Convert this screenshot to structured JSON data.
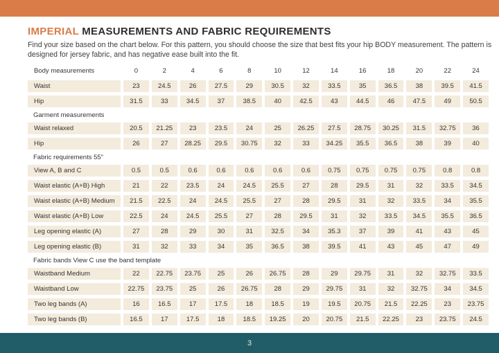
{
  "page": {
    "title_highlight": "IMPERIAL",
    "title_rest": " MEASUREMENTS AND FABRIC REQUIREMENTS",
    "subtitle": "Find your size based on the chart below. For this pattern, you should choose the size that best fits your hip BODY measurement.  The pattern is designed for jersey fabric, and has negative ease built into the fit.",
    "page_number": "3"
  },
  "colors": {
    "accent_orange": "#D97C48",
    "accent_teal": "#205D68",
    "row_beige": "#F3EBDC"
  },
  "table": {
    "header": {
      "label": "Body measurements"
    },
    "sizes": [
      "0",
      "2",
      "4",
      "6",
      "8",
      "10",
      "12",
      "14",
      "16",
      "18",
      "20",
      "22",
      "24"
    ],
    "sections": [
      {
        "title": null,
        "rows": [
          {
            "label": "Waist",
            "values": [
              "23",
              "24.5",
              "26",
              "27.5",
              "29",
              "30.5",
              "32",
              "33.5",
              "35",
              "36.5",
              "38",
              "39.5",
              "41.5"
            ]
          },
          {
            "label": "Hip",
            "values": [
              "31.5",
              "33",
              "34.5",
              "37",
              "38.5",
              "40",
              "42.5",
              "43",
              "44.5",
              "46",
              "47.5",
              "49",
              "50.5"
            ]
          }
        ]
      },
      {
        "title": "Garment measurements",
        "rows": [
          {
            "label": "Waist relaxed",
            "values": [
              "20.5",
              "21.25",
              "23",
              "23.5",
              "24",
              "25",
              "26.25",
              "27.5",
              "28.75",
              "30.25",
              "31.5",
              "32.75",
              "36"
            ]
          },
          {
            "label": "Hip",
            "values": [
              "26",
              "27",
              "28.25",
              "29.5",
              "30.75",
              "32",
              "33",
              "34.25",
              "35.5",
              "36.5",
              "38",
              "39",
              "40"
            ]
          }
        ]
      },
      {
        "title": "Fabric requirements 55\"",
        "rows": [
          {
            "label": "View A, B and C",
            "values": [
              "0.5",
              "0.5",
              "0.6",
              "0.6",
              "0.6",
              "0.6",
              "0.6",
              "0.75",
              "0.75",
              "0.75",
              "0.75",
              "0.8",
              "0.8"
            ]
          },
          {
            "label": "Waist elastic (A+B) High",
            "values": [
              "21",
              "22",
              "23.5",
              "24",
              "24.5",
              "25.5",
              "27",
              "28",
              "29.5",
              "31",
              "32",
              "33.5",
              "34.5"
            ]
          },
          {
            "label": "Waist elastic (A+B) Medium",
            "values": [
              "21.5",
              "22.5",
              "24",
              "24.5",
              "25.5",
              "27",
              "28",
              "29.5",
              "31",
              "32",
              "33.5",
              "34",
              "35.5"
            ]
          },
          {
            "label": "Waist elastic (A+B) Low",
            "values": [
              "22.5",
              "24",
              "24.5",
              "25.5",
              "27",
              "28",
              "29.5",
              "31",
              "32",
              "33.5",
              "34.5",
              "35.5",
              "36.5"
            ]
          },
          {
            "label": "Leg opening elastic (A)",
            "values": [
              "27",
              "28",
              "29",
              "30",
              "31",
              "32.5",
              "34",
              "35.3",
              "37",
              "39",
              "41",
              "43",
              "45"
            ]
          },
          {
            "label": "Leg opening elastic (B)",
            "values": [
              "31",
              "32",
              "33",
              "34",
              "35",
              "36.5",
              "38",
              "39.5",
              "41",
              "43",
              "45",
              "47",
              "49"
            ]
          }
        ]
      },
      {
        "title": "Fabric bands View C use the band template",
        "rows": [
          {
            "label": "Waistband Medium",
            "values": [
              "22",
              "22.75",
              "23.75",
              "25",
              "26",
              "26.75",
              "28",
              "29",
              "29.75",
              "31",
              "32",
              "32.75",
              "33.5"
            ]
          },
          {
            "label": "Waistband Low",
            "values": [
              "22.75",
              "23.75",
              "25",
              "26",
              "26.75",
              "28",
              "29",
              "29.75",
              "31",
              "32",
              "32.75",
              "34",
              "34.5"
            ]
          },
          {
            "label": "Two leg bands (A)",
            "values": [
              "16",
              "16.5",
              "17",
              "17.5",
              "18",
              "18.5",
              "19",
              "19.5",
              "20.75",
              "21.5",
              "22.25",
              "23",
              "23.75"
            ]
          },
          {
            "label": "Two leg bands (B)",
            "values": [
              "16.5",
              "17",
              "17.5",
              "18",
              "18.5",
              "19.25",
              "20",
              "20.75",
              "21.5",
              "22.25",
              "23",
              "23.75",
              "24.5"
            ]
          }
        ]
      }
    ]
  }
}
